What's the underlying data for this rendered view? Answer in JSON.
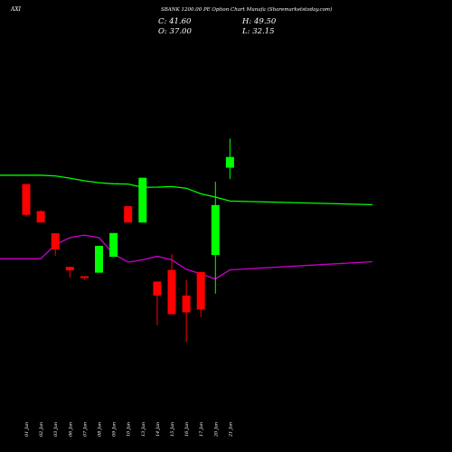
{
  "header": {
    "ticker": "AXI",
    "title": "SBANK 1200.00 PE Option Chart Munafa",
    "site": "(Sharemarketstoday.com)",
    "close_label": "C: 41.60",
    "open_label": "O: 37.00",
    "high_label": "H: 49.50",
    "low_label": "L: 32.15"
  },
  "colors": {
    "background": "#000000",
    "up": "#00ff00",
    "down": "#ff0000",
    "green_line": "#00ff00",
    "purple_line": "#cc00cc",
    "text": "#ffffff"
  },
  "chart_data": {
    "type": "candlestick",
    "categories": [
      "01 Jan",
      "02 Jan",
      "03 Jan",
      "06 Jan",
      "07 Jan",
      "08 Jan",
      "09 Jan",
      "10 Jan",
      "13 Jan",
      "14 Jan",
      "15 Jan",
      "16 Jan",
      "17 Jan",
      "20 Jan",
      "21 Jan"
    ],
    "candles": [
      {
        "open": 30.0,
        "high": 30.0,
        "low": 16.0,
        "close": 16.8
      },
      {
        "open": 18.4,
        "high": 18.8,
        "low": 13.5,
        "close": 13.5
      },
      {
        "open": 8.9,
        "high": 8.9,
        "low": -0.7,
        "close": 2.0
      },
      {
        "open": -5.5,
        "high": -5.5,
        "low": -10.2,
        "close": -7.0
      },
      {
        "open": -9.5,
        "high": -9.5,
        "low": -11.0,
        "close": -10.2
      },
      {
        "open": -8.0,
        "high": 3.5,
        "low": -8.0,
        "close": 3.5
      },
      {
        "open": -1.2,
        "high": 9.0,
        "low": -1.2,
        "close": 9.0
      },
      {
        "open": 20.5,
        "high": 20.5,
        "low": 13.5,
        "close": 13.5
      },
      {
        "open": 13.5,
        "high": 32.7,
        "low": 13.5,
        "close": 32.7
      },
      {
        "open": -11.8,
        "high": -11.8,
        "low": -30.5,
        "close": -17.8
      },
      {
        "open": -6.8,
        "high": 0.0,
        "low": -25.8,
        "close": -25.8
      },
      {
        "open": -17.8,
        "high": -11.2,
        "low": -37.7,
        "close": -25.0
      },
      {
        "open": -7.7,
        "high": -7.7,
        "low": -27.0,
        "close": -23.8
      },
      {
        "open": -0.4,
        "high": 31.0,
        "low": -17.0,
        "close": 21.0
      },
      {
        "open": 37.0,
        "high": 49.5,
        "low": 32.15,
        "close": 41.6
      }
    ],
    "series": [
      {
        "color": "green",
        "values": [
          33.8,
          33.8,
          33.5,
          32.5,
          31.4,
          30.6,
          30.1,
          30.0,
          28.6,
          28.7,
          28.9,
          28.2,
          25.8,
          24.4,
          22.7
        ]
      },
      {
        "color": "purple",
        "values": [
          -2.0,
          -2.0,
          4.0,
          7.0,
          8.1,
          7.0,
          0.0,
          -3.5,
          -2.5,
          -1.0,
          -2.5,
          -6.6,
          -8.5,
          -10.7,
          -6.8
        ]
      }
    ]
  }
}
